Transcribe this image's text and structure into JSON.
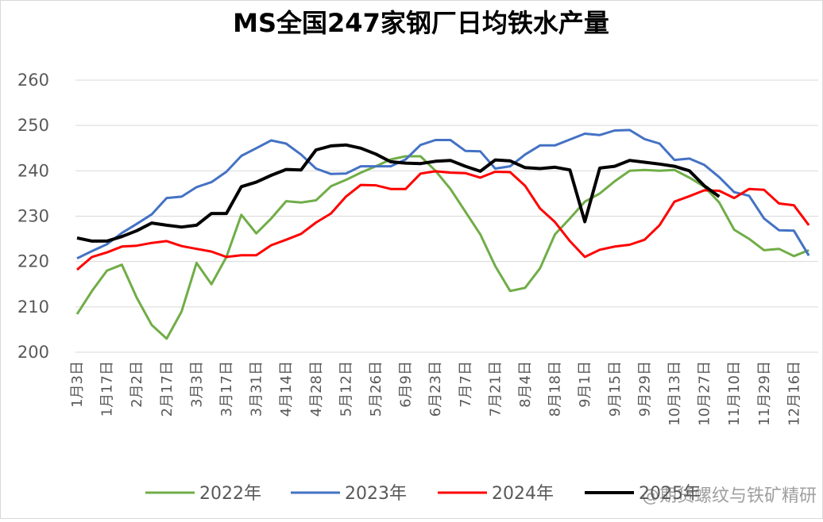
{
  "chart_data": {
    "type": "line",
    "title": "MS全国247家钢厂日均铁水产量",
    "categories": [
      "1月3日",
      null,
      "1月17日",
      null,
      "2月2日",
      null,
      "2月17日",
      null,
      "3月3日",
      null,
      "3月17日",
      null,
      "3月31日",
      null,
      "4月14日",
      null,
      "4月28日",
      null,
      "5月12日",
      null,
      "5月26日",
      null,
      "6月9日",
      null,
      "6月23日",
      null,
      "7月7日",
      null,
      "7月21日",
      null,
      "8月4日",
      null,
      "8月18日",
      null,
      "9月1日",
      null,
      "9月15日",
      null,
      "9月29日",
      null,
      "10月13日",
      null,
      "10月27日",
      null,
      "11月10日",
      null,
      "11月29日",
      null,
      "12月16日",
      null
    ],
    "series": [
      {
        "name": "2022年",
        "color": "#70ad47",
        "values": [
          208.4,
          213.5,
          218,
          219.3,
          212,
          206,
          203,
          209,
          219.7,
          215,
          221,
          230.3,
          226.2,
          229.5,
          233.3,
          233,
          233.5,
          236.6,
          238,
          239.6,
          241,
          242.5,
          243.2,
          243.2,
          240,
          236,
          231,
          226,
          219,
          213.5,
          214.2,
          218.5,
          226,
          229.5,
          233.2,
          235,
          237.7,
          240,
          240.2,
          240,
          240.2,
          238.5,
          236.5,
          233,
          227,
          225,
          222.5,
          222.8,
          221.2,
          222.5
        ]
      },
      {
        "name": "2023年",
        "color": "#4472c4",
        "values": [
          220.7,
          222.3,
          223.8,
          226.3,
          228.3,
          230.4,
          234,
          234.3,
          236.4,
          237.5,
          239.8,
          243.3,
          245,
          246.7,
          246,
          243.6,
          240.5,
          239.3,
          239.4,
          241,
          241,
          241,
          242.5,
          245.7,
          246.8,
          246.8,
          244.4,
          244.3,
          240.5,
          241,
          243.6,
          245.6,
          245.6,
          246.9,
          248.2,
          247.9,
          248.9,
          249,
          247,
          246,
          242.4,
          242.7,
          241.3,
          238.6,
          235.3,
          234.5,
          229.5,
          226.9,
          226.8,
          221.3
        ]
      },
      {
        "name": "2024年",
        "color": "#ff0000",
        "values": [
          218.2,
          221,
          222,
          223.3,
          223.5,
          224.1,
          224.5,
          223.4,
          222.8,
          222.2,
          221,
          221.4,
          221.4,
          223.6,
          224.8,
          226.1,
          228.6,
          230.6,
          234.3,
          236.9,
          236.8,
          236,
          236,
          239.4,
          239.9,
          239.6,
          239.5,
          238.5,
          239.8,
          239.7,
          236.7,
          231.7,
          228.7,
          224.5,
          221,
          222.6,
          223.3,
          223.7,
          224.8,
          228,
          233.2,
          234.4,
          235.7,
          235.6,
          234,
          236,
          235.8,
          232.8,
          232.4,
          228
        ]
      },
      {
        "name": "2025年",
        "color": "#000000",
        "values": [
          225.2,
          224.5,
          224.5,
          225.5,
          226.8,
          228.5,
          228,
          227.6,
          228,
          230.6,
          230.6,
          236.5,
          237.5,
          239,
          240.3,
          240.2,
          244.6,
          245.5,
          245.7,
          245,
          243.7,
          242,
          241.7,
          241.6,
          242.1,
          242.3,
          241,
          239.9,
          242.4,
          242.2,
          240.7,
          240.5,
          240.8,
          240.2,
          228.8,
          240.6,
          241,
          242.3,
          241.9,
          241.5,
          241,
          240,
          236.7,
          234.3,
          null,
          null,
          null,
          null,
          null,
          null
        ]
      }
    ],
    "ylim": [
      200,
      260
    ],
    "yticks": [
      200,
      210,
      220,
      230,
      240,
      250,
      260
    ],
    "grid": true,
    "legend": "bottom",
    "watermark": "@期货螺纹与铁矿精研"
  }
}
